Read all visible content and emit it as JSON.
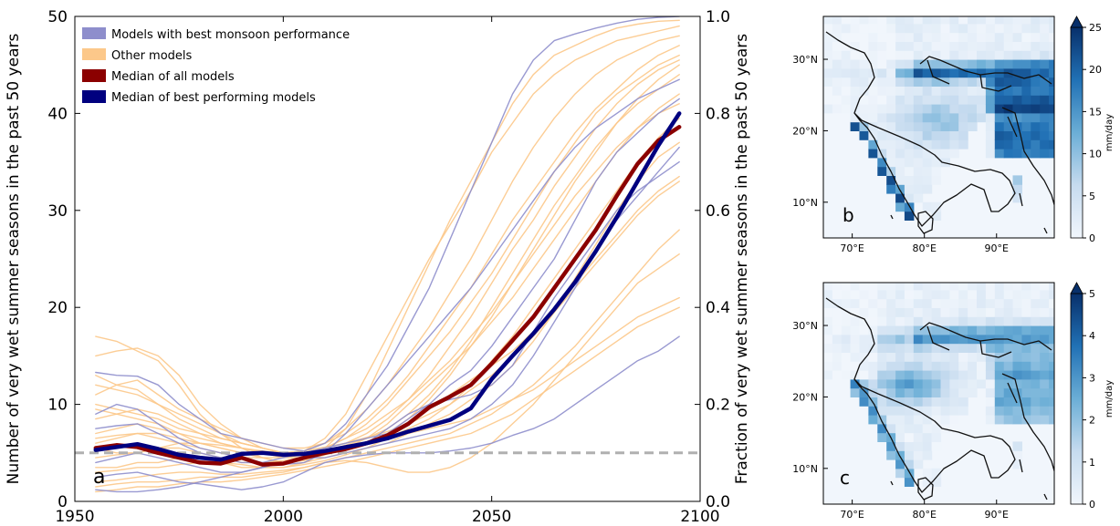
{
  "colors": {
    "best_models": "#8e8ecc",
    "other_models": "#fcc88a",
    "median_all": "#8b0000",
    "median_best": "#00007f",
    "threshold": "#b0b0b0",
    "map_low": "#f1f6fc",
    "map_high": "#08306b",
    "land_outline": "#111111"
  },
  "chart_data": [
    {
      "type": "line",
      "panel_label": "a",
      "xlabel": "",
      "ylabel": "Number of very wet summer seasons in the past 50 years",
      "ylabel_right": "Fraction of very wet summer seasons in the past 50 years",
      "xlim": [
        1950,
        2100
      ],
      "ylim": [
        0,
        50
      ],
      "ylim_right": [
        0,
        1.0
      ],
      "xticks": [
        "1950",
        "2000",
        "2050",
        "2100"
      ],
      "yticks": [
        "0",
        "10",
        "20",
        "30",
        "40",
        "50"
      ],
      "yticks_right": [
        "0.0",
        "0.2",
        "0.4",
        "0.6",
        "0.8",
        "1.0"
      ],
      "grid": false,
      "legend_position": "top-left",
      "legend": [
        {
          "name": "Models with best monsoon performance",
          "color": "#8e8ecc",
          "kind": "thin"
        },
        {
          "name": "Other models",
          "color": "#fcc88a",
          "kind": "thin"
        },
        {
          "name": "Median of all models",
          "color": "#8b0000",
          "kind": "thick"
        },
        {
          "name": "Median of best performing models",
          "color": "#00007f",
          "kind": "thick"
        }
      ],
      "threshold": {
        "y": 5,
        "style": "dashed",
        "color": "#b0b0b0"
      },
      "x": [
        1955,
        1960,
        1965,
        1970,
        1975,
        1980,
        1985,
        1990,
        1995,
        2000,
        2005,
        2010,
        2015,
        2020,
        2025,
        2030,
        2035,
        2040,
        2045,
        2050,
        2055,
        2060,
        2065,
        2070,
        2075,
        2080,
        2085,
        2090,
        2095
      ],
      "series": [
        {
          "name": "Median of all models",
          "style": "median_all",
          "values": [
            5.5,
            5.8,
            5.6,
            5.0,
            4.5,
            4.0,
            3.9,
            4.5,
            3.8,
            3.9,
            4.5,
            5.0,
            5.4,
            6.0,
            6.8,
            8.0,
            9.7,
            10.8,
            12.0,
            14.2,
            16.6,
            19.0,
            22.0,
            25.0,
            28.0,
            31.5,
            34.8,
            37.2,
            38.6
          ]
        },
        {
          "name": "Median of best performing models",
          "style": "median_best",
          "values": [
            5.3,
            5.6,
            5.9,
            5.4,
            4.8,
            4.5,
            4.3,
            4.9,
            5.0,
            4.8,
            4.9,
            5.2,
            5.6,
            6.0,
            6.5,
            7.2,
            7.8,
            8.4,
            9.6,
            12.6,
            15.0,
            17.3,
            19.8,
            22.6,
            25.8,
            29.3,
            33.0,
            36.7,
            40.0
          ]
        },
        {
          "style": "best",
          "values": [
            13.3,
            13.0,
            12.9,
            12.0,
            10.0,
            8.5,
            7.0,
            6.5,
            6.0,
            5.5,
            5.2,
            6.0,
            8.0,
            11.0,
            14.0,
            18.0,
            22.0,
            27.0,
            32.0,
            37.0,
            42.0,
            45.5,
            47.5,
            48.2,
            48.8,
            49.3,
            49.7,
            49.9,
            50.0
          ]
        },
        {
          "style": "best",
          "values": [
            9.0,
            10.0,
            9.5,
            8.0,
            6.5,
            5.5,
            5.0,
            4.5,
            4.0,
            3.8,
            4.0,
            5.0,
            7.0,
            9.5,
            12.0,
            14.5,
            17.0,
            19.5,
            22.0,
            25.0,
            28.0,
            31.0,
            34.0,
            36.5,
            38.5,
            40.0,
            41.5,
            42.5,
            43.5
          ]
        },
        {
          "style": "best",
          "values": [
            4.0,
            4.5,
            5.0,
            4.5,
            4.0,
            3.5,
            3.0,
            3.0,
            3.5,
            4.0,
            4.5,
            4.5,
            5.0,
            5.5,
            6.0,
            6.5,
            7.0,
            7.5,
            8.5,
            10.0,
            12.0,
            15.0,
            18.5,
            22.0,
            26.0,
            29.0,
            31.5,
            34.0,
            36.5
          ]
        },
        {
          "style": "best",
          "values": [
            7.5,
            7.8,
            8.0,
            7.0,
            6.0,
            5.0,
            4.5,
            4.0,
            4.0,
            4.5,
            5.0,
            5.5,
            6.0,
            6.5,
            7.0,
            8.5,
            10.0,
            12.0,
            13.5,
            16.0,
            19.0,
            22.0,
            25.0,
            29.0,
            33.0,
            36.0,
            38.0,
            40.0,
            41.5
          ]
        },
        {
          "style": "best",
          "values": [
            2.5,
            2.8,
            3.0,
            2.5,
            2.0,
            1.8,
            1.5,
            1.2,
            1.5,
            2.0,
            3.0,
            4.0,
            4.5,
            4.8,
            5.0,
            5.0,
            5.0,
            5.2,
            5.5,
            6.0,
            6.8,
            7.5,
            8.5,
            10.0,
            11.5,
            13.0,
            14.5,
            15.5,
            17.0
          ]
        },
        {
          "style": "best",
          "values": [
            1.2,
            1.0,
            1.0,
            1.2,
            1.5,
            2.0,
            2.5,
            3.0,
            3.5,
            4.0,
            4.5,
            5.0,
            5.5,
            6.0,
            7.5,
            9.0,
            10.0,
            10.5,
            11.0,
            12.0,
            14.0,
            17.5,
            21.0,
            24.0,
            27.0,
            30.0,
            32.0,
            33.5,
            35.0
          ]
        },
        {
          "style": "other",
          "values": [
            17.0,
            16.5,
            15.5,
            14.5,
            12.0,
            9.0,
            7.0,
            5.5,
            4.5,
            4.0,
            4.5,
            5.5,
            7.5,
            11.0,
            15.5,
            20.0,
            24.5,
            29.0,
            33.0,
            37.0,
            41.0,
            44.0,
            46.0,
            47.0,
            48.0,
            48.8,
            49.2,
            49.5,
            49.6
          ]
        },
        {
          "style": "other",
          "values": [
            15.0,
            15.5,
            15.8,
            15.0,
            13.0,
            10.0,
            8.0,
            6.5,
            5.5,
            5.0,
            5.2,
            6.5,
            9.0,
            13.0,
            17.0,
            21.0,
            25.0,
            28.5,
            32.0,
            36.0,
            39.0,
            42.0,
            44.0,
            45.5,
            46.5,
            47.5,
            48.0,
            48.5,
            49.0
          ]
        },
        {
          "style": "other",
          "values": [
            13.0,
            12.0,
            11.5,
            10.0,
            9.0,
            8.0,
            7.0,
            6.0,
            5.5,
            5.0,
            5.2,
            6.0,
            7.5,
            9.5,
            12.0,
            15.0,
            18.0,
            21.5,
            25.0,
            29.0,
            33.0,
            36.5,
            39.5,
            42.0,
            44.0,
            45.5,
            46.5,
            47.5,
            48.0
          ]
        },
        {
          "style": "other",
          "values": [
            11.0,
            12.0,
            12.5,
            11.0,
            9.5,
            8.5,
            7.5,
            6.5,
            6.0,
            5.5,
            5.5,
            6.0,
            7.0,
            8.5,
            10.5,
            13.0,
            16.0,
            19.0,
            22.0,
            25.5,
            29.0,
            32.0,
            35.0,
            38.0,
            40.5,
            42.5,
            44.5,
            46.0,
            47.0
          ]
        },
        {
          "style": "other",
          "values": [
            10.0,
            9.5,
            9.0,
            8.5,
            7.5,
            7.0,
            6.5,
            6.0,
            5.5,
            5.0,
            5.0,
            5.5,
            6.5,
            8.0,
            10.0,
            12.5,
            15.0,
            17.5,
            20.5,
            23.5,
            27.0,
            30.5,
            34.0,
            37.0,
            40.0,
            42.0,
            43.5,
            45.0,
            46.0
          ]
        },
        {
          "style": "other",
          "values": [
            8.5,
            9.0,
            9.5,
            9.0,
            8.0,
            7.0,
            6.0,
            5.5,
            5.0,
            4.8,
            5.0,
            5.5,
            6.0,
            7.0,
            8.5,
            10.5,
            13.0,
            16.0,
            19.0,
            22.5,
            26.0,
            29.0,
            32.5,
            35.5,
            38.5,
            41.0,
            43.0,
            44.5,
            45.5
          ]
        },
        {
          "style": "other",
          "values": [
            7.0,
            7.5,
            8.0,
            7.5,
            7.0,
            6.5,
            6.0,
            5.5,
            5.0,
            4.5,
            4.5,
            5.0,
            5.5,
            6.0,
            7.0,
            8.5,
            10.5,
            13.0,
            16.0,
            19.0,
            22.5,
            26.0,
            29.5,
            33.0,
            36.0,
            39.0,
            41.5,
            43.5,
            45.0
          ]
        },
        {
          "style": "other",
          "values": [
            6.0,
            6.5,
            7.0,
            6.5,
            6.0,
            5.5,
            5.0,
            4.5,
            4.5,
            4.5,
            4.8,
            5.2,
            5.8,
            6.5,
            7.5,
            9.0,
            11.0,
            13.5,
            16.5,
            20.0,
            23.5,
            27.0,
            30.5,
            33.5,
            36.5,
            39.0,
            41.0,
            42.5,
            44.0
          ]
        },
        {
          "style": "other",
          "values": [
            5.5,
            5.0,
            5.0,
            5.5,
            6.0,
            6.0,
            5.5,
            5.0,
            4.5,
            4.0,
            4.2,
            4.8,
            5.5,
            6.5,
            8.0,
            10.0,
            12.0,
            14.0,
            16.0,
            18.5,
            21.0,
            24.0,
            27.0,
            30.0,
            33.0,
            36.0,
            38.5,
            40.5,
            42.0
          ]
        },
        {
          "style": "other",
          "values": [
            4.5,
            4.8,
            5.0,
            5.5,
            5.5,
            5.0,
            4.5,
            4.0,
            4.0,
            4.2,
            4.5,
            5.0,
            5.5,
            6.0,
            6.5,
            7.5,
            8.5,
            10.0,
            12.0,
            14.5,
            17.0,
            20.0,
            23.0,
            26.0,
            29.0,
            32.0,
            35.0,
            37.5,
            39.5
          ]
        },
        {
          "style": "other",
          "values": [
            3.5,
            3.5,
            4.0,
            4.0,
            4.5,
            4.5,
            4.0,
            3.5,
            3.5,
            3.5,
            4.0,
            4.5,
            5.0,
            5.5,
            6.0,
            7.0,
            8.0,
            9.0,
            10.5,
            12.0,
            14.0,
            16.5,
            19.5,
            23.0,
            26.5,
            30.0,
            33.0,
            35.5,
            37.0
          ]
        },
        {
          "style": "other",
          "values": [
            3.0,
            3.2,
            3.5,
            3.5,
            3.8,
            4.0,
            4.0,
            3.8,
            3.5,
            3.5,
            3.8,
            4.2,
            4.8,
            5.5,
            6.5,
            8.0,
            9.5,
            11.0,
            12.5,
            14.0,
            15.5,
            17.5,
            20.0,
            22.5,
            25.0,
            27.5,
            30.0,
            32.0,
            33.5
          ]
        },
        {
          "style": "other",
          "values": [
            2.0,
            2.2,
            2.5,
            2.8,
            3.0,
            3.0,
            2.8,
            2.8,
            3.0,
            3.2,
            3.5,
            4.0,
            4.5,
            5.0,
            5.5,
            6.0,
            6.5,
            7.0,
            8.0,
            9.0,
            10.5,
            12.0,
            14.0,
            16.0,
            18.5,
            21.0,
            23.5,
            26.0,
            28.0
          ]
        },
        {
          "style": "other",
          "values": [
            1.5,
            1.8,
            2.0,
            2.0,
            2.2,
            2.5,
            2.5,
            2.5,
            2.8,
            3.0,
            3.5,
            4.0,
            4.2,
            4.0,
            3.5,
            3.0,
            3.0,
            3.5,
            4.5,
            6.0,
            8.0,
            10.0,
            12.5,
            15.0,
            17.5,
            20.0,
            22.5,
            24.0,
            25.5
          ]
        },
        {
          "style": "other",
          "values": [
            1.0,
            1.2,
            1.5,
            1.5,
            1.8,
            2.0,
            2.0,
            2.2,
            2.5,
            2.8,
            3.2,
            3.6,
            4.0,
            4.5,
            5.0,
            5.5,
            6.0,
            6.5,
            7.0,
            8.0,
            9.0,
            10.5,
            12.0,
            13.5,
            15.0,
            16.5,
            18.0,
            19.0,
            20.0
          ]
        },
        {
          "style": "other",
          "values": [
            12.0,
            11.5,
            11.0,
            10.0,
            8.5,
            7.5,
            6.5,
            6.0,
            5.5,
            5.0,
            5.0,
            5.5,
            6.5,
            7.5,
            9.0,
            10.5,
            12.5,
            14.5,
            17.0,
            19.5,
            22.5,
            25.5,
            28.5,
            31.5,
            34.0,
            36.5,
            38.5,
            40.0,
            41.0
          ]
        },
        {
          "style": "other",
          "values": [
            9.5,
            9.0,
            8.5,
            8.0,
            7.0,
            6.0,
            5.5,
            5.0,
            5.0,
            5.0,
            5.2,
            5.6,
            6.0,
            6.6,
            7.2,
            8.0,
            9.0,
            10.0,
            11.5,
            13.0,
            15.0,
            17.0,
            19.5,
            22.0,
            24.5,
            27.0,
            29.5,
            31.5,
            33.0
          ]
        },
        {
          "style": "other",
          "values": [
            6.5,
            6.8,
            7.0,
            7.0,
            6.5,
            6.0,
            5.8,
            5.5,
            5.2,
            5.0,
            5.0,
            5.2,
            5.5,
            6.0,
            6.5,
            7.0,
            7.5,
            8.0,
            8.5,
            9.5,
            10.5,
            11.5,
            13.0,
            14.5,
            16.0,
            17.5,
            19.0,
            20.0,
            21.0
          ]
        }
      ]
    },
    {
      "type": "heatmap",
      "panel_label": "b",
      "xlim": [
        66,
        98
      ],
      "ylim": [
        5,
        36
      ],
      "xticks": [
        "70°E",
        "80°E",
        "90°E"
      ],
      "yticks": [
        "10°N",
        "20°N",
        "30°N"
      ],
      "colorbar": {
        "label": "mm/day",
        "range": [
          0,
          25
        ],
        "ticks": [
          "0",
          "5",
          "10",
          "15",
          "20",
          "25"
        ]
      }
    },
    {
      "type": "heatmap",
      "panel_label": "c",
      "xlim": [
        66,
        98
      ],
      "ylim": [
        5,
        36
      ],
      "xticks": [
        "70°E",
        "80°E",
        "90°E"
      ],
      "yticks": [
        "10°N",
        "20°N",
        "30°N"
      ],
      "colorbar": {
        "label": "mm/day",
        "range": [
          0,
          5
        ],
        "ticks": [
          "0",
          "1",
          "2",
          "3",
          "4",
          "5"
        ]
      }
    }
  ]
}
